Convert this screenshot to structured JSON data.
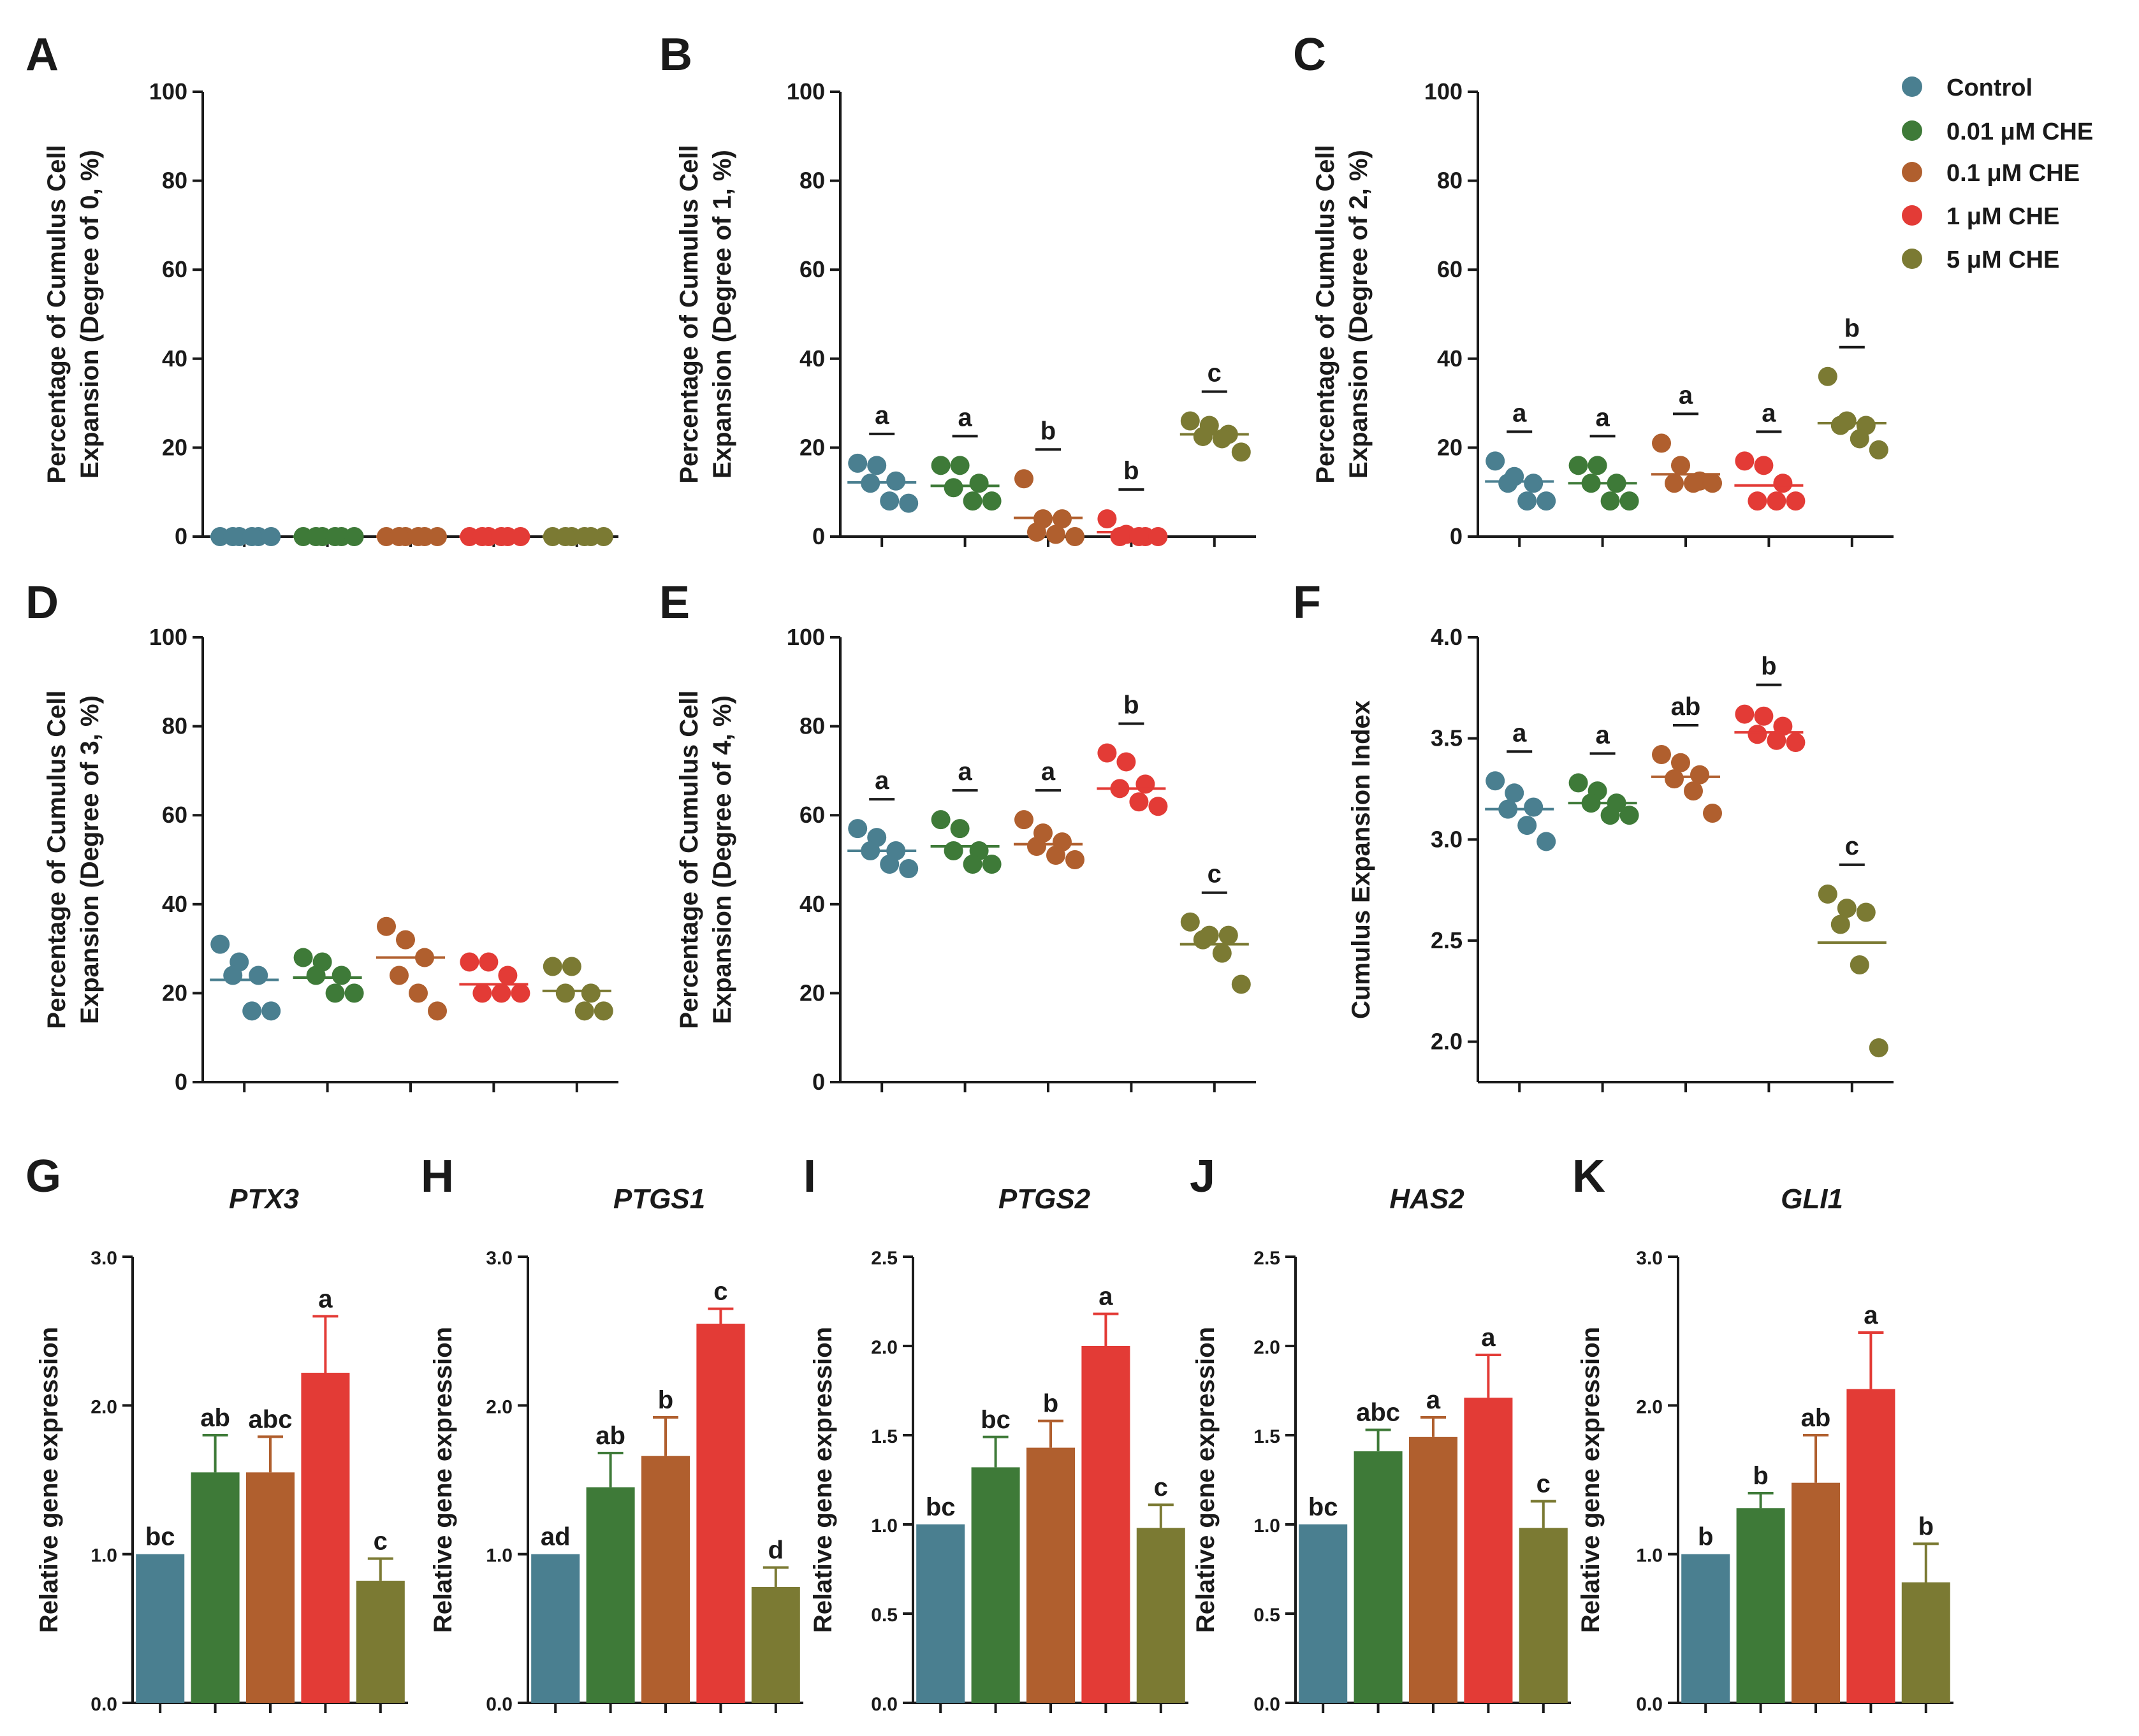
{
  "colors": {
    "Control": "#4a7f90",
    "0.01 μM CHE": "#3e7a38",
    "0.1 μM CHE": "#b05f2e",
    "1 μM CHE": "#e33b36",
    "5 μM CHE": "#7b7a33",
    "text": "#1a1a1a"
  },
  "legend": {
    "items": [
      "Control",
      "0.01 μM CHE",
      "0.1 μM CHE",
      "1 μM CHE",
      "5 μM CHE"
    ]
  },
  "chart_data": [
    {
      "panel": "A",
      "type": "scatter",
      "ylabel_lines": [
        "Percentage of Cumulus Cell",
        "Expansion (Degree of 0, %)"
      ],
      "ylim": [
        0,
        100
      ],
      "yticks": [
        0,
        20,
        40,
        60,
        80,
        100
      ],
      "ytick_labels": [
        "0",
        "20",
        "40",
        "60",
        "80",
        "100"
      ],
      "groups": [
        "Control",
        "0.01 μM CHE",
        "0.1 μM CHE",
        "1 μM CHE",
        "5 μM CHE"
      ],
      "points": [
        [
          0,
          0,
          0,
          0,
          0,
          0
        ],
        [
          0,
          0,
          0,
          0,
          0,
          0
        ],
        [
          0,
          0,
          0,
          0,
          0,
          0
        ],
        [
          0,
          0,
          0,
          0,
          0,
          0
        ],
        [
          0,
          0,
          0,
          0,
          0,
          0
        ]
      ],
      "means": [
        0,
        0,
        0,
        0,
        0
      ],
      "sig": [
        "",
        "",
        "",
        "",
        ""
      ]
    },
    {
      "panel": "B",
      "type": "scatter",
      "ylabel_lines": [
        "Percentage of Cumulus Cell",
        "Expansion (Degree of 1, %)"
      ],
      "ylim": [
        0,
        100
      ],
      "yticks": [
        0,
        20,
        40,
        60,
        80,
        100
      ],
      "ytick_labels": [
        "0",
        "20",
        "40",
        "60",
        "80",
        "100"
      ],
      "groups": [
        "Control",
        "0.01 μM CHE",
        "0.1 μM CHE",
        "1 μM CHE",
        "5 μM CHE"
      ],
      "points": [
        [
          16.5,
          16,
          12.5,
          12,
          8,
          7.5
        ],
        [
          16,
          16,
          12,
          11,
          8,
          8
        ],
        [
          13,
          4,
          4,
          1,
          0.5,
          0
        ],
        [
          4,
          0.5,
          0,
          0,
          0,
          0
        ],
        [
          26,
          25,
          23,
          22.5,
          22,
          19
        ]
      ],
      "means": [
        12.2,
        11.4,
        4.2,
        1.0,
        23.0
      ],
      "sig": [
        "a",
        "a",
        "b",
        "b",
        "c"
      ]
    },
    {
      "panel": "C",
      "type": "scatter",
      "ylabel_lines": [
        "Percentage of Cumulus Cell",
        "Expansion (Degree of 2, %)"
      ],
      "ylim": [
        0,
        100
      ],
      "yticks": [
        0,
        20,
        40,
        60,
        80,
        100
      ],
      "ytick_labels": [
        "0",
        "20",
        "40",
        "60",
        "80",
        "100"
      ],
      "groups": [
        "Control",
        "0.01 μM CHE",
        "0.1 μM CHE",
        "1 μM CHE",
        "5 μM CHE"
      ],
      "points": [
        [
          17,
          13.5,
          12,
          12,
          8,
          8
        ],
        [
          16,
          16,
          12,
          12,
          8,
          8
        ],
        [
          21,
          16,
          12.5,
          12,
          12,
          12
        ],
        [
          17,
          16,
          12,
          8,
          8,
          8
        ],
        [
          36,
          26,
          25,
          25,
          22,
          19.5
        ]
      ],
      "means": [
        12.4,
        12.0,
        14.0,
        11.5,
        25.5
      ],
      "sig": [
        "a",
        "a",
        "a",
        "a",
        "b"
      ]
    },
    {
      "panel": "D",
      "type": "scatter",
      "ylabel_lines": [
        "Percentage of Cumulus Cell",
        "Expansion (Degree of 3, %)"
      ],
      "ylim": [
        0,
        100
      ],
      "yticks": [
        0,
        20,
        40,
        60,
        80,
        100
      ],
      "ytick_labels": [
        "0",
        "20",
        "40",
        "60",
        "80",
        "100"
      ],
      "groups": [
        "Control",
        "0.01 μM CHE",
        "0.1 μM CHE",
        "1 μM CHE",
        "5 μM CHE"
      ],
      "points": [
        [
          31,
          27,
          24,
          24,
          16,
          16
        ],
        [
          28,
          27,
          24,
          24,
          20,
          20
        ],
        [
          35,
          32,
          28,
          24,
          20,
          16
        ],
        [
          27,
          27,
          24,
          20,
          20,
          20
        ],
        [
          26,
          26,
          20,
          20,
          16,
          16
        ]
      ],
      "means": [
        23.0,
        23.5,
        28.0,
        22.0,
        20.5
      ],
      "sig": [
        "",
        "",
        "",
        "",
        ""
      ]
    },
    {
      "panel": "E",
      "type": "scatter",
      "ylabel_lines": [
        "Percentage of Cumulus Cell",
        "Expansion (Degree of 4, %)"
      ],
      "ylim": [
        0,
        100
      ],
      "yticks": [
        0,
        20,
        40,
        60,
        80,
        100
      ],
      "ytick_labels": [
        "0",
        "20",
        "40",
        "60",
        "80",
        "100"
      ],
      "groups": [
        "Control",
        "0.01 μM CHE",
        "0.1 μM CHE",
        "1 μM CHE",
        "5 μM CHE"
      ],
      "points": [
        [
          57,
          55,
          52,
          52,
          49,
          48
        ],
        [
          59,
          57,
          52,
          52,
          49,
          49
        ],
        [
          59,
          56,
          54,
          53,
          51,
          50
        ],
        [
          74,
          72,
          67,
          66,
          63,
          62
        ],
        [
          36,
          33,
          33,
          32,
          29,
          22
        ]
      ],
      "means": [
        52.0,
        53.0,
        53.5,
        66.0,
        31.0
      ],
      "sig": [
        "a",
        "a",
        "a",
        "b",
        "c"
      ]
    },
    {
      "panel": "F",
      "type": "scatter",
      "ylabel_lines": [
        "Cumulus Expansion Index"
      ],
      "ylim": [
        1.8,
        4.0
      ],
      "yticks": [
        2.0,
        2.5,
        3.0,
        3.5,
        4.0
      ],
      "ytick_labels": [
        "2.0",
        "2.5",
        "3.0",
        "3.5",
        "4.0"
      ],
      "groups": [
        "Control",
        "0.01 μM CHE",
        "0.1 μM CHE",
        "1 μM CHE",
        "5 μM CHE"
      ],
      "points": [
        [
          3.29,
          3.23,
          3.16,
          3.15,
          3.07,
          2.99
        ],
        [
          3.28,
          3.24,
          3.18,
          3.18,
          3.12,
          3.12
        ],
        [
          3.42,
          3.38,
          3.32,
          3.3,
          3.24,
          3.13
        ],
        [
          3.62,
          3.61,
          3.56,
          3.52,
          3.49,
          3.48
        ],
        [
          2.73,
          2.66,
          2.64,
          2.58,
          2.38,
          1.97
        ]
      ],
      "means": [
        3.15,
        3.18,
        3.31,
        3.53,
        2.49
      ],
      "sig": [
        "a",
        "a",
        "ab",
        "b",
        "c"
      ]
    },
    {
      "panel": "G",
      "type": "bar",
      "title": "PTX3",
      "ylabel": "Relative gene expression",
      "ylim": [
        0,
        3.0
      ],
      "yticks": [
        0,
        1.0,
        2.0,
        3.0
      ],
      "ytick_labels": [
        "0.0",
        "1.0",
        "2.0",
        "3.0"
      ],
      "categories": [
        "Control",
        "0.01 μM CHE",
        "0.1 μM CHE",
        "1 μM CHE",
        "5 μM CHE"
      ],
      "values": [
        1.0,
        1.55,
        1.55,
        2.22,
        0.82
      ],
      "errors": [
        0,
        0.25,
        0.24,
        0.38,
        0.15
      ],
      "sig": [
        "bc",
        "ab",
        "abc",
        "a",
        "c"
      ]
    },
    {
      "panel": "H",
      "type": "bar",
      "title": "PTGS1",
      "ylabel": "Relative gene expression",
      "ylim": [
        0,
        3.0
      ],
      "yticks": [
        0,
        1.0,
        2.0,
        3.0
      ],
      "ytick_labels": [
        "0.0",
        "1.0",
        "2.0",
        "3.0"
      ],
      "categories": [
        "Control",
        "0.01 μM CHE",
        "0.1 μM CHE",
        "1 μM CHE",
        "5 μM CHE"
      ],
      "values": [
        1.0,
        1.45,
        1.66,
        2.55,
        0.78
      ],
      "errors": [
        0,
        0.23,
        0.26,
        0.1,
        0.13
      ],
      "sig": [
        "ad",
        "ab",
        "b",
        "c",
        "d"
      ]
    },
    {
      "panel": "I",
      "type": "bar",
      "title": "PTGS2",
      "ylabel": "Relative gene expression",
      "ylim": [
        0,
        2.5
      ],
      "yticks": [
        0,
        0.5,
        1.0,
        1.5,
        2.0,
        2.5
      ],
      "ytick_labels": [
        "0.0",
        "0.5",
        "1.0",
        "1.5",
        "2.0",
        "2.5"
      ],
      "categories": [
        "Control",
        "0.01 μM CHE",
        "0.1 μM CHE",
        "1 μM CHE",
        "5 μM CHE"
      ],
      "values": [
        1.0,
        1.32,
        1.43,
        2.0,
        0.98
      ],
      "errors": [
        0,
        0.17,
        0.15,
        0.18,
        0.13
      ],
      "sig": [
        "bc",
        "bc",
        "b",
        "a",
        "c"
      ]
    },
    {
      "panel": "J",
      "type": "bar",
      "title": "HAS2",
      "ylabel": "Relative gene expression",
      "ylim": [
        0,
        2.5
      ],
      "yticks": [
        0,
        0.5,
        1.0,
        1.5,
        2.0,
        2.5
      ],
      "ytick_labels": [
        "0.0",
        "0.5",
        "1.0",
        "1.5",
        "2.0",
        "2.5"
      ],
      "categories": [
        "Control",
        "0.01 μM CHE",
        "0.1 μM CHE",
        "1 μM CHE",
        "5 μM CHE"
      ],
      "values": [
        1.0,
        1.41,
        1.49,
        1.71,
        0.98
      ],
      "errors": [
        0,
        0.12,
        0.11,
        0.24,
        0.15
      ],
      "sig": [
        "bc",
        "abc",
        "a",
        "a",
        "c"
      ]
    },
    {
      "panel": "K",
      "type": "bar",
      "title": "GLI1",
      "ylabel": "Relative gene expression",
      "ylim": [
        0,
        3.0
      ],
      "yticks": [
        0,
        1.0,
        2.0,
        3.0
      ],
      "ytick_labels": [
        "0.0",
        "1.0",
        "2.0",
        "3.0"
      ],
      "categories": [
        "Control",
        "0.01 μM CHE",
        "0.1 μM CHE",
        "1 μM CHE",
        "5 μM CHE"
      ],
      "values": [
        1.0,
        1.31,
        1.48,
        2.11,
        0.81
      ],
      "errors": [
        0,
        0.1,
        0.32,
        0.38,
        0.26
      ],
      "sig": [
        "b",
        "b",
        "ab",
        "a",
        "b"
      ]
    }
  ]
}
